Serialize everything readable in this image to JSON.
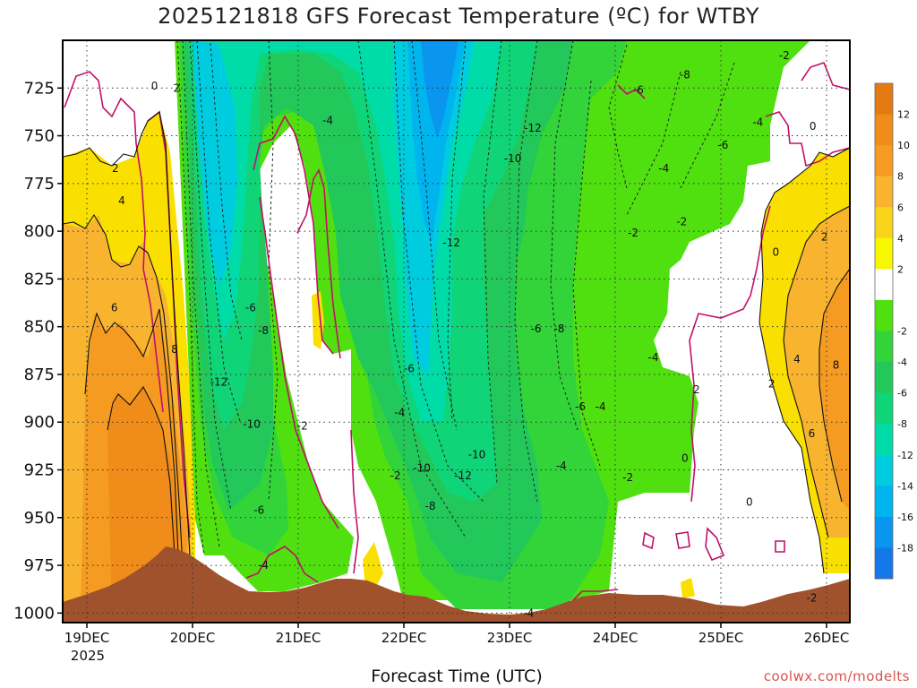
{
  "chart": {
    "title": "2025121818 GFS Forecast Temperature (ºC) for WTBY",
    "xlabel": "Forecast Time (UTC)",
    "credit": "coolwx.com/modelts"
  },
  "chart_data": {
    "type": "heatmap",
    "title": "2025121818 GFS Forecast Temperature (ºC) for WTBY",
    "xlabel": "Forecast Time (UTC)",
    "ylabel": "",
    "ylim": [
      1005,
      700
    ],
    "x_ticks": [
      "19DEC",
      "20DEC",
      "21DEC",
      "22DEC",
      "23DEC",
      "24DEC",
      "25DEC",
      "26DEC"
    ],
    "x_year_label": "2025",
    "y_ticks": [
      725,
      750,
      775,
      800,
      825,
      850,
      875,
      900,
      925,
      950,
      975,
      1000
    ],
    "colorbar": {
      "tick_labels": [
        12,
        10,
        8,
        6,
        4,
        2,
        -2,
        -4,
        -6,
        -8,
        -12,
        -14,
        -16,
        -18
      ],
      "colors": [
        "#e67a12",
        "#f08c1a",
        "#f59b22",
        "#f8b42e",
        "#f9d41a",
        "#f7f700",
        "#ffffff",
        "#50e010",
        "#32d43a",
        "#22c85a",
        "#10d478",
        "#00dca8",
        "#00cce0",
        "#00b4ee",
        "#0a96ee",
        "#1478ea"
      ]
    },
    "contour_labels": [
      {
        "label": "0",
        "time": 0.64,
        "p": 724
      },
      {
        "label": "2",
        "time": 0.85,
        "p": 725
      },
      {
        "label": "2",
        "time": 0.27,
        "p": 767
      },
      {
        "label": "4",
        "time": 0.33,
        "p": 784
      },
      {
        "label": "6",
        "time": 0.26,
        "p": 840
      },
      {
        "label": "8",
        "time": 0.83,
        "p": 862
      },
      {
        "label": "-4",
        "time": 2.28,
        "p": 742
      },
      {
        "label": "-6",
        "time": 1.55,
        "p": 840
      },
      {
        "label": "-8",
        "time": 1.67,
        "p": 852
      },
      {
        "label": "-12",
        "time": 1.25,
        "p": 879
      },
      {
        "label": "-10",
        "time": 1.56,
        "p": 901
      },
      {
        "label": "-2",
        "time": 2.04,
        "p": 902
      },
      {
        "label": "-6",
        "time": 1.63,
        "p": 946
      },
      {
        "label": "-4",
        "time": 1.67,
        "p": 975
      },
      {
        "label": "-6",
        "time": 3.05,
        "p": 872
      },
      {
        "label": "-4",
        "time": 2.96,
        "p": 895
      },
      {
        "label": "-2",
        "time": 2.92,
        "p": 928
      },
      {
        "label": "-12",
        "time": 3.45,
        "p": 806
      },
      {
        "label": "-10",
        "time": 4.03,
        "p": 762
      },
      {
        "label": "-12",
        "time": 4.22,
        "p": 746
      },
      {
        "label": "-10",
        "time": 3.17,
        "p": 924
      },
      {
        "label": "-12",
        "time": 3.56,
        "p": 928
      },
      {
        "label": "-10",
        "time": 3.69,
        "p": 917
      },
      {
        "label": "-8",
        "time": 3.25,
        "p": 944
      },
      {
        "label": "-6",
        "time": 4.25,
        "p": 851
      },
      {
        "label": "-8",
        "time": 4.47,
        "p": 851
      },
      {
        "label": "-6",
        "time": 4.67,
        "p": 892
      },
      {
        "label": "-4",
        "time": 4.86,
        "p": 892
      },
      {
        "label": "-4",
        "time": 4.49,
        "p": 923
      },
      {
        "label": "-4",
        "time": 4.18,
        "p": 1000
      },
      {
        "label": "-6",
        "time": 5.22,
        "p": 726
      },
      {
        "label": "-8",
        "time": 5.66,
        "p": 718
      },
      {
        "label": "-4",
        "time": 5.46,
        "p": 767
      },
      {
        "label": "-6",
        "time": 6.02,
        "p": 755
      },
      {
        "label": "-4",
        "time": 6.35,
        "p": 743
      },
      {
        "label": "-2",
        "time": 5.17,
        "p": 801
      },
      {
        "label": "-2",
        "time": 5.63,
        "p": 795
      },
      {
        "label": "-4",
        "time": 5.36,
        "p": 866
      },
      {
        "label": "-2",
        "time": 5.12,
        "p": 929
      },
      {
        "label": "0",
        "time": 6.52,
        "p": 811
      },
      {
        "label": "2",
        "time": 5.77,
        "p": 883
      },
      {
        "label": "0",
        "time": 5.66,
        "p": 919
      },
      {
        "label": "0",
        "time": 6.27,
        "p": 942
      },
      {
        "label": "-2",
        "time": 6.6,
        "p": 708
      },
      {
        "label": "0",
        "time": 6.87,
        "p": 745
      },
      {
        "label": "2",
        "time": 6.98,
        "p": 803
      },
      {
        "label": "2",
        "time": 6.48,
        "p": 880
      },
      {
        "label": "4",
        "time": 6.72,
        "p": 867
      },
      {
        "label": "6",
        "time": 6.86,
        "p": 906
      },
      {
        "label": "8",
        "time": 7.09,
        "p": 870
      },
      {
        "label": "-2",
        "time": 6.86,
        "p": 992
      }
    ]
  }
}
